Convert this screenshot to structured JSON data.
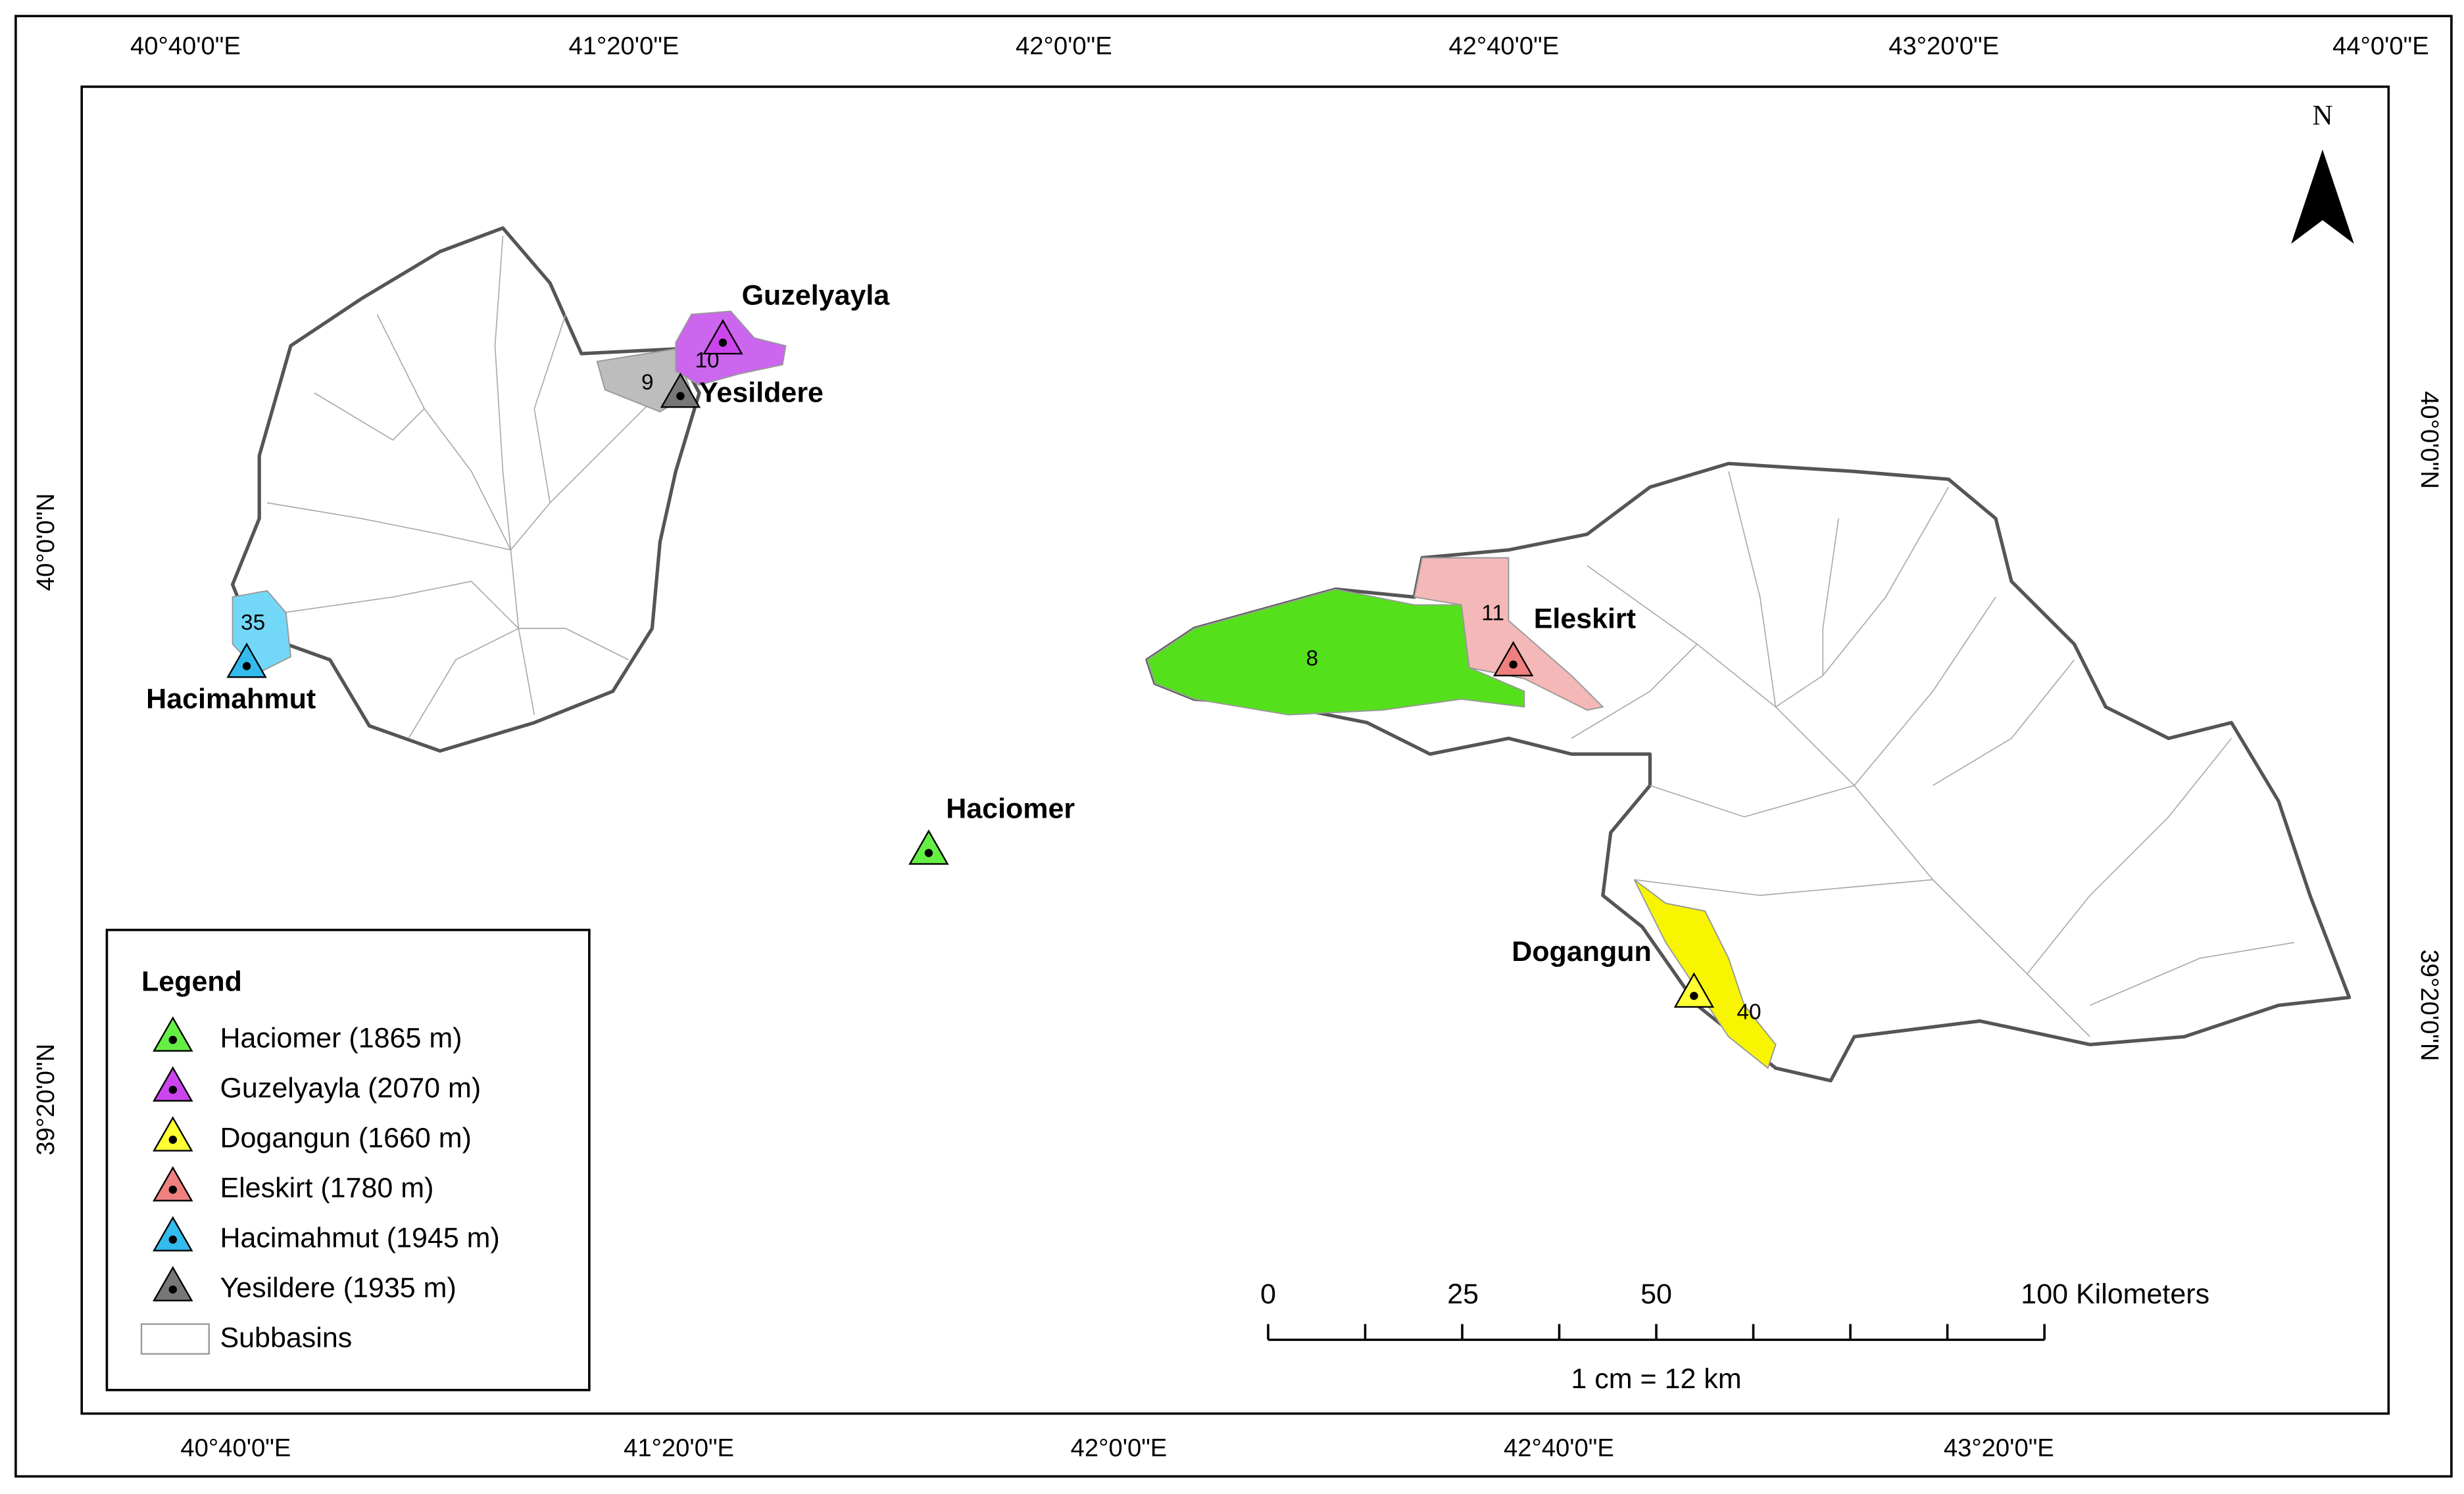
{
  "map": {
    "top_axis": [
      "40°40'0\"E",
      "41°20'0\"E",
      "42°0'0\"E",
      "42°40'0\"E",
      "43°20'0\"E",
      "44°0'0\"E"
    ],
    "bottom_axis": [
      "40°40'0\"E",
      "41°20'0\"E",
      "42°0'0\"E",
      "42°40'0\"E",
      "43°20'0\"E"
    ],
    "left_axis": [
      "40°0'0\"N",
      "39°20'0\"N"
    ],
    "right_axis": [
      "40°0'0\"N",
      "39°20'0\"N"
    ],
    "north": "N",
    "stations": [
      "Haciomer",
      "Guzelyayla",
      "Dogangun",
      "Eleskirt",
      "Hacimahmut",
      "Yesildere"
    ],
    "subbasin_numbers": [
      "8",
      "9",
      "10",
      "11",
      "35",
      "40"
    ],
    "legend": {
      "title": "Legend",
      "entries": [
        {
          "label": "Haciomer (1865 m)",
          "color": "#66ee44"
        },
        {
          "label": "Guzelyayla (2070 m)",
          "color": "#cc44ee"
        },
        {
          "label": "Dogangun (1660 m)",
          "color": "#ffff33"
        },
        {
          "label": "Eleskirt (1780 m)",
          "color": "#f08080"
        },
        {
          "label": "Hacimahmut (1945 m)",
          "color": "#33bbee"
        },
        {
          "label": "Yesildere (1935 m)",
          "color": "#777777"
        }
      ],
      "basin_label": "Subbasins"
    },
    "scale_bar": {
      "labels": [
        "0",
        "25",
        "50",
        "100 Kilometers"
      ],
      "ratio": "1 cm = 12 km"
    }
  }
}
